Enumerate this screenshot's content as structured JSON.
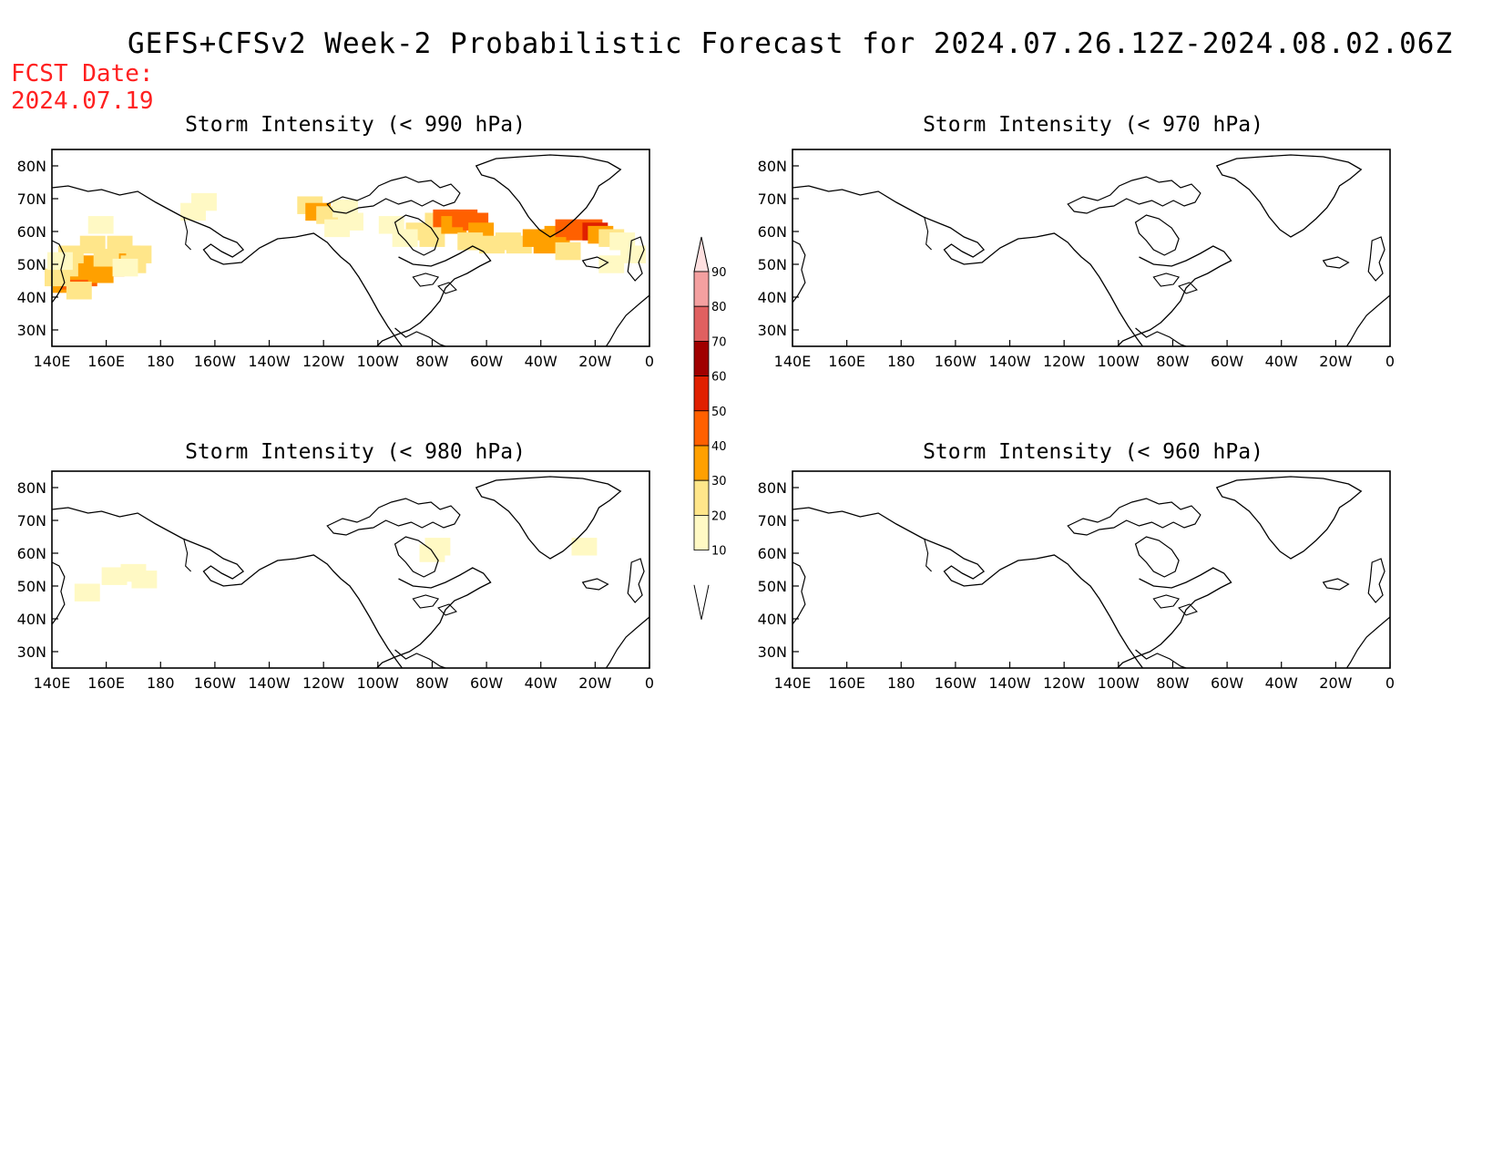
{
  "title": "GEFS+CFSv2 Week-2 Probabilistic Forecast for 2024.07.26.12Z-2024.08.02.06Z",
  "fcst_label": "FCST Date:",
  "fcst_date": "2024.07.19",
  "panels": [
    {
      "title": "Storm Intensity (< 990 hPa)",
      "cells": [
        {
          "lon": 145,
          "lat": 44,
          "p": 30
        },
        {
          "lon": 148,
          "lat": 45,
          "p": 40
        },
        {
          "lon": 152,
          "lat": 46,
          "p": 40
        },
        {
          "lon": 150,
          "lat": 48,
          "p": 30
        },
        {
          "lon": 155,
          "lat": 50,
          "p": 30
        },
        {
          "lon": 145,
          "lat": 49,
          "p": 20
        },
        {
          "lon": 147,
          "lat": 53,
          "p": 20
        },
        {
          "lon": 158,
          "lat": 47,
          "p": 30
        },
        {
          "lon": 162,
          "lat": 49,
          "p": 30
        },
        {
          "lon": 165,
          "lat": 52,
          "p": 30
        },
        {
          "lon": 168,
          "lat": 53,
          "p": 30
        },
        {
          "lon": 172,
          "lat": 53,
          "p": 20
        },
        {
          "lon": 170,
          "lat": 50,
          "p": 20
        },
        {
          "lon": 155,
          "lat": 56,
          "p": 20
        },
        {
          "lon": 160,
          "lat": 52,
          "p": 20
        },
        {
          "lon": 142,
          "lat": 46,
          "p": 20
        },
        {
          "lon": 150,
          "lat": 42,
          "p": 20
        },
        {
          "lon": 143,
          "lat": 51,
          "p": 10
        },
        {
          "lon": 158,
          "lat": 62,
          "p": 10
        },
        {
          "lon": 165,
          "lat": 56,
          "p": 20
        },
        {
          "lon": 167,
          "lat": 49,
          "p": 10
        },
        {
          "lon": -168,
          "lat": 66,
          "p": 10
        },
        {
          "lon": -164,
          "lat": 69,
          "p": 10
        },
        {
          "lon": -125,
          "lat": 68,
          "p": 20
        },
        {
          "lon": -122,
          "lat": 66,
          "p": 30
        },
        {
          "lon": -118,
          "lat": 65,
          "p": 20
        },
        {
          "lon": -112,
          "lat": 67,
          "p": 10
        },
        {
          "lon": -110,
          "lat": 63,
          "p": 10
        },
        {
          "lon": -115,
          "lat": 61,
          "p": 10
        },
        {
          "lon": -85,
          "lat": 60,
          "p": 20
        },
        {
          "lon": -80,
          "lat": 58,
          "p": 20
        },
        {
          "lon": -78,
          "lat": 63,
          "p": 20
        },
        {
          "lon": -75,
          "lat": 64,
          "p": 40
        },
        {
          "lon": -72,
          "lat": 62,
          "p": 30
        },
        {
          "lon": -68,
          "lat": 64,
          "p": 40
        },
        {
          "lon": -64,
          "lat": 63,
          "p": 40
        },
        {
          "lon": -62,
          "lat": 60,
          "p": 30
        },
        {
          "lon": -66,
          "lat": 57,
          "p": 20
        },
        {
          "lon": -58,
          "lat": 56,
          "p": 20
        },
        {
          "lon": -52,
          "lat": 57,
          "p": 20
        },
        {
          "lon": -48,
          "lat": 56,
          "p": 20
        },
        {
          "lon": -42,
          "lat": 58,
          "p": 30
        },
        {
          "lon": -38,
          "lat": 56,
          "p": 30
        },
        {
          "lon": -34,
          "lat": 59,
          "p": 30
        },
        {
          "lon": -30,
          "lat": 61,
          "p": 40
        },
        {
          "lon": -26,
          "lat": 60,
          "p": 40
        },
        {
          "lon": -22,
          "lat": 61,
          "p": 40
        },
        {
          "lon": -20,
          "lat": 60,
          "p": 50
        },
        {
          "lon": -18,
          "lat": 59,
          "p": 30
        },
        {
          "lon": -14,
          "lat": 58,
          "p": 20
        },
        {
          "lon": -10,
          "lat": 57,
          "p": 10
        },
        {
          "lon": -30,
          "lat": 54,
          "p": 20
        },
        {
          "lon": -14,
          "lat": 50,
          "p": 10
        },
        {
          "lon": -6,
          "lat": 53,
          "p": 10
        },
        {
          "lon": -90,
          "lat": 58,
          "p": 10
        },
        {
          "lon": -95,
          "lat": 62,
          "p": 10
        }
      ]
    },
    {
      "title": "Storm Intensity (< 970 hPa)",
      "cells": []
    },
    {
      "title": "Storm Intensity (< 980 hPa)",
      "cells": [
        {
          "lon": 153,
          "lat": 48,
          "p": 10
        },
        {
          "lon": 163,
          "lat": 53,
          "p": 10
        },
        {
          "lon": 170,
          "lat": 54,
          "p": 10
        },
        {
          "lon": 174,
          "lat": 52,
          "p": 10
        },
        {
          "lon": -24,
          "lat": 62,
          "p": 10
        },
        {
          "lon": -80,
          "lat": 60,
          "p": 10
        },
        {
          "lon": -78,
          "lat": 62,
          "p": 10
        }
      ]
    },
    {
      "title": "Storm Intensity (< 960 hPa)",
      "cells": []
    }
  ],
  "lon_ticks": [
    "140E",
    "160E",
    "180",
    "160W",
    "140W",
    "120W",
    "100W",
    "80W",
    "60W",
    "40W",
    "20W",
    "0"
  ],
  "lat_ticks": [
    "80N",
    "70N",
    "60N",
    "50N",
    "40N",
    "30N"
  ],
  "colorbar": {
    "levels": [
      "10",
      "20",
      "30",
      "40",
      "50",
      "60",
      "70",
      "80",
      "90"
    ],
    "colors": [
      "#fff9c4",
      "#ffe68a",
      "#ffa000",
      "#ff6000",
      "#e02000",
      "#a00000",
      "#e06060",
      "#f4a0a0",
      "#ffe0e0"
    ]
  }
}
